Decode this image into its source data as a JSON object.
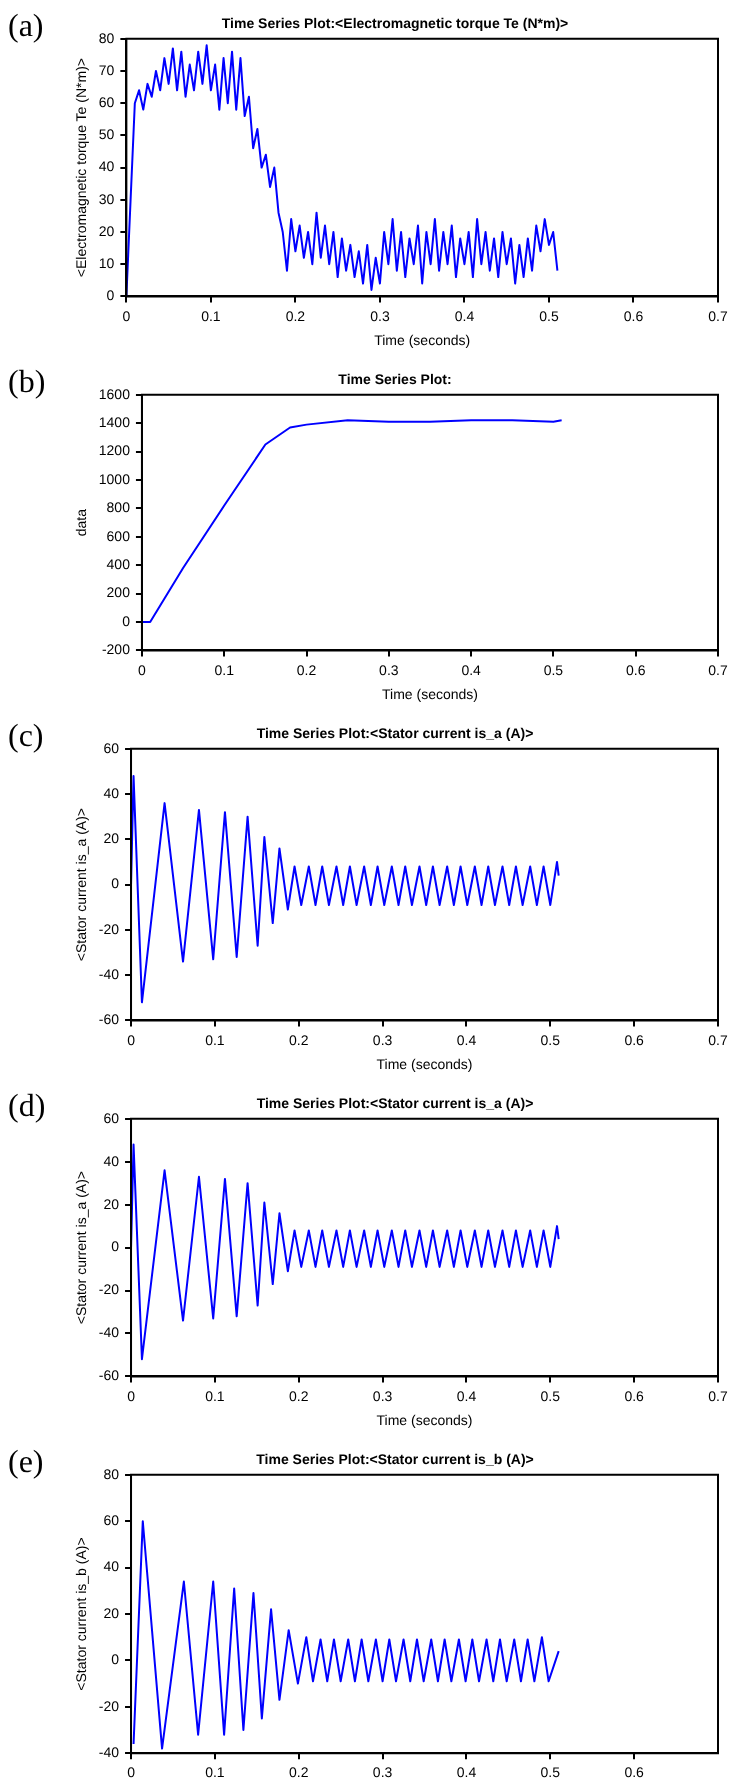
{
  "chart_data": [
    {
      "type": "line",
      "title": "Time Series Plot:<Electromagnetic torque Te (N*m)>",
      "xlabel": "Time (seconds)",
      "ylabel": "<Electromagnetic torque Te (N*m)>",
      "annotations": [
        "(a)"
      ],
      "xlim": [
        0,
        0.7
      ],
      "xticks": [
        0,
        0.1,
        0.2,
        0.3,
        0.4,
        0.5,
        0.6,
        0.7
      ],
      "ylim": [
        0,
        80
      ],
      "yticks": [
        0,
        10,
        20,
        30,
        40,
        50,
        60,
        70,
        80
      ],
      "x": [
        0,
        0.005,
        0.01,
        0.015,
        0.02,
        0.025,
        0.03,
        0.035,
        0.04,
        0.045,
        0.05,
        0.055,
        0.06,
        0.065,
        0.07,
        0.075,
        0.08,
        0.085,
        0.09,
        0.095,
        0.1,
        0.105,
        0.11,
        0.115,
        0.12,
        0.125,
        0.13,
        0.135,
        0.14,
        0.145,
        0.15,
        0.155,
        0.16,
        0.165,
        0.17,
        0.175,
        0.18,
        0.185,
        0.19,
        0.195,
        0.2,
        0.205,
        0.21,
        0.215,
        0.22,
        0.225,
        0.23,
        0.235,
        0.24,
        0.245,
        0.25,
        0.255,
        0.26,
        0.265,
        0.27,
        0.275,
        0.28,
        0.285,
        0.29,
        0.295,
        0.3,
        0.305,
        0.31,
        0.315,
        0.32,
        0.325,
        0.33,
        0.335,
        0.34,
        0.345,
        0.35,
        0.355,
        0.36,
        0.365,
        0.37,
        0.375,
        0.38,
        0.385,
        0.39,
        0.395,
        0.4,
        0.405,
        0.41,
        0.415,
        0.42,
        0.425,
        0.43,
        0.435,
        0.44,
        0.445,
        0.45,
        0.455,
        0.46,
        0.465,
        0.47,
        0.475,
        0.48,
        0.485,
        0.49,
        0.495,
        0.5,
        0.505,
        0.51
      ],
      "series": [
        {
          "color": "#0000ff",
          "values": [
            0,
            30,
            60,
            64,
            58,
            66,
            62,
            70,
            64,
            74,
            66,
            77,
            64,
            76,
            62,
            72,
            64,
            76,
            66,
            78,
            64,
            72,
            58,
            74,
            60,
            76,
            58,
            74,
            56,
            62,
            46,
            52,
            40,
            44,
            34,
            40,
            26,
            20,
            8,
            24,
            14,
            22,
            12,
            20,
            10,
            26,
            12,
            22,
            10,
            20,
            6,
            18,
            8,
            16,
            6,
            14,
            4,
            16,
            2,
            12,
            4,
            20,
            10,
            24,
            8,
            20,
            6,
            18,
            10,
            22,
            4,
            20,
            10,
            24,
            8,
            20,
            10,
            22,
            6,
            18,
            10,
            20,
            6,
            24,
            10,
            20,
            8,
            18,
            6,
            20,
            10,
            18,
            4,
            16,
            6,
            18,
            8,
            22,
            14,
            24,
            16,
            20,
            8
          ]
        }
      ]
    },
    {
      "type": "line",
      "title": "Time Series Plot:",
      "xlabel": "Time (seconds)",
      "ylabel": "data",
      "annotations": [
        "(b)"
      ],
      "xlim": [
        0,
        0.7
      ],
      "xticks": [
        0,
        0.1,
        0.2,
        0.3,
        0.4,
        0.5,
        0.6,
        0.7
      ],
      "ylim": [
        -200,
        1600
      ],
      "yticks": [
        -200,
        0,
        200,
        400,
        600,
        800,
        1000,
        1200,
        1400,
        1600
      ],
      "x": [
        0,
        0.01,
        0.05,
        0.1,
        0.15,
        0.18,
        0.2,
        0.25,
        0.3,
        0.35,
        0.4,
        0.45,
        0.5,
        0.51
      ],
      "series": [
        {
          "color": "#0000ff",
          "values": [
            0,
            0,
            380,
            820,
            1250,
            1370,
            1390,
            1420,
            1410,
            1410,
            1420,
            1420,
            1410,
            1420
          ]
        }
      ]
    },
    {
      "type": "line",
      "title": "Time Series Plot:<Stator current is_a (A)>",
      "xlabel": "Time (seconds)",
      "ylabel": "<Stator current is_a (A)>",
      "annotations": [
        "(c)"
      ],
      "xlim": [
        0,
        0.7
      ],
      "xticks": [
        0,
        0.1,
        0.2,
        0.3,
        0.4,
        0.5,
        0.6,
        0.7
      ],
      "ylim": [
        -60,
        60
      ],
      "yticks": [
        -60,
        -40,
        -20,
        0,
        20,
        40,
        60
      ],
      "x": [
        0,
        0.003,
        0.013,
        0.04,
        0.062,
        0.081,
        0.098,
        0.112,
        0.126,
        0.139,
        0.151,
        0.159,
        0.169,
        0.177,
        0.187,
        0.195,
        0.203,
        0.212,
        0.22,
        0.228,
        0.236,
        0.245,
        0.253,
        0.261,
        0.269,
        0.278,
        0.286,
        0.294,
        0.302,
        0.311,
        0.319,
        0.327,
        0.335,
        0.344,
        0.352,
        0.36,
        0.368,
        0.377,
        0.385,
        0.393,
        0.401,
        0.41,
        0.418,
        0.426,
        0.434,
        0.443,
        0.451,
        0.459,
        0.467,
        0.476,
        0.484,
        0.492,
        0.5,
        0.508,
        0.51
      ],
      "series": [
        {
          "color": "#0000ff",
          "values": [
            0,
            48,
            -52,
            36,
            -34,
            33,
            -33,
            32,
            -32,
            30,
            -27,
            21,
            -17,
            16,
            -11,
            8,
            -9,
            8,
            -9,
            8,
            -9,
            8,
            -9,
            8,
            -9,
            8,
            -9,
            8,
            -9,
            8,
            -9,
            8,
            -9,
            8,
            -9,
            8,
            -9,
            8,
            -9,
            8,
            -9,
            8,
            -9,
            8,
            -9,
            8,
            -9,
            8,
            -9,
            8,
            -9,
            8,
            -9,
            10,
            4
          ]
        }
      ]
    },
    {
      "type": "line",
      "title": "Time Series Plot:<Stator current is_a (A)>",
      "xlabel": "Time (seconds)",
      "ylabel": "<Stator current is_a (A)>",
      "annotations": [
        "(d)"
      ],
      "xlim": [
        0,
        0.7
      ],
      "xticks": [
        0,
        0.1,
        0.2,
        0.3,
        0.4,
        0.5,
        0.6,
        0.7
      ],
      "ylim": [
        -60,
        60
      ],
      "yticks": [
        -60,
        -40,
        -20,
        0,
        20,
        40,
        60
      ],
      "x": [
        0,
        0.003,
        0.013,
        0.04,
        0.062,
        0.081,
        0.098,
        0.112,
        0.126,
        0.139,
        0.151,
        0.159,
        0.169,
        0.177,
        0.187,
        0.195,
        0.203,
        0.212,
        0.22,
        0.228,
        0.236,
        0.245,
        0.253,
        0.261,
        0.269,
        0.278,
        0.286,
        0.294,
        0.302,
        0.311,
        0.319,
        0.327,
        0.335,
        0.344,
        0.352,
        0.36,
        0.368,
        0.377,
        0.385,
        0.393,
        0.401,
        0.41,
        0.418,
        0.426,
        0.434,
        0.443,
        0.451,
        0.459,
        0.467,
        0.476,
        0.484,
        0.492,
        0.5,
        0.508,
        0.51
      ],
      "series": [
        {
          "color": "#0000ff",
          "values": [
            0,
            48,
            -52,
            36,
            -34,
            33,
            -33,
            32,
            -32,
            30,
            -27,
            21,
            -17,
            16,
            -11,
            8,
            -9,
            8,
            -9,
            8,
            -9,
            8,
            -9,
            8,
            -9,
            8,
            -9,
            8,
            -9,
            8,
            -9,
            8,
            -9,
            8,
            -9,
            8,
            -9,
            8,
            -9,
            8,
            -9,
            8,
            -9,
            8,
            -9,
            8,
            -9,
            8,
            -9,
            8,
            -9,
            8,
            -9,
            10,
            4
          ]
        }
      ]
    },
    {
      "type": "line",
      "title": "Time Series Plot:<Stator current is_b (A)>",
      "ylabel": "<Stator current is_b (A)>",
      "annotations": [
        "(e)"
      ],
      "xlim": [
        0,
        0.7
      ],
      "xticks": [
        0,
        0.1,
        0.2,
        0.3,
        0.4,
        0.5,
        0.6
      ],
      "ylim": [
        -40,
        80
      ],
      "yticks": [
        -40,
        -20,
        0,
        20,
        40,
        60,
        80
      ],
      "x": [
        0.003,
        0.014,
        0.037,
        0.063,
        0.08,
        0.098,
        0.111,
        0.123,
        0.134,
        0.146,
        0.156,
        0.167,
        0.177,
        0.188,
        0.199,
        0.209,
        0.217,
        0.226,
        0.234,
        0.242,
        0.25,
        0.259,
        0.267,
        0.275,
        0.283,
        0.292,
        0.3,
        0.308,
        0.316,
        0.325,
        0.333,
        0.341,
        0.349,
        0.358,
        0.366,
        0.374,
        0.382,
        0.391,
        0.399,
        0.407,
        0.415,
        0.424,
        0.432,
        0.44,
        0.448,
        0.457,
        0.465,
        0.473,
        0.481,
        0.49,
        0.498,
        0.51
      ],
      "series": [
        {
          "color": "#0000ff",
          "values": [
            -36,
            60,
            -38,
            34,
            -32,
            34,
            -32,
            31,
            -30,
            29,
            -25,
            22,
            -17,
            13,
            -10,
            10,
            -9,
            9,
            -9,
            9,
            -9,
            9,
            -9,
            9,
            -9,
            9,
            -9,
            9,
            -9,
            9,
            -9,
            9,
            -9,
            9,
            -9,
            9,
            -9,
            9,
            -9,
            9,
            -9,
            9,
            -9,
            9,
            -9,
            9,
            -9,
            9,
            -9,
            10,
            -9,
            4
          ]
        }
      ]
    }
  ]
}
